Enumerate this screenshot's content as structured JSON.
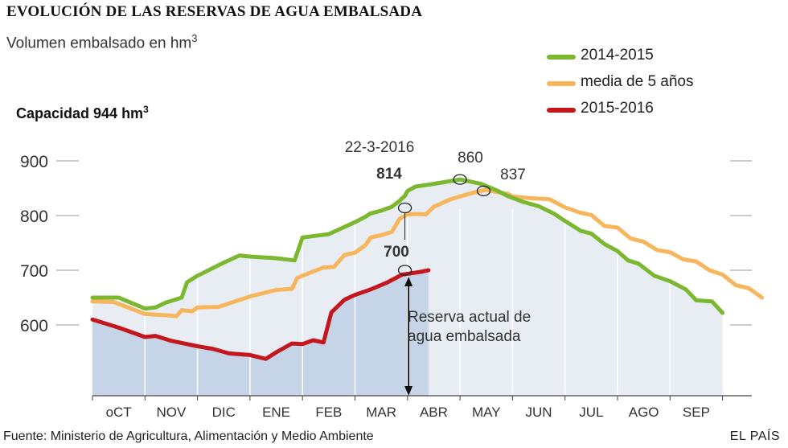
{
  "header": {
    "title": "EVOLUCIÓN DE LAS RESERVAS DE AGUA EMBALSADA",
    "subtitle": "Volumen embalsado en hm",
    "subtitle_sup": "3",
    "capacity": "Capacidad 944 hm",
    "capacity_sup": "3"
  },
  "footer": {
    "source": "Fuente: Ministerio de Agricultura, Alimentación y Medio Ambiente",
    "brand": "EL PAÍS"
  },
  "colors": {
    "green": "#7cb82f",
    "orange": "#f7b55c",
    "red": "#c4161c",
    "area_light": "#e8edf3",
    "area_dark": "#c5d5e7",
    "grid": "#999999"
  },
  "chart_data": {
    "type": "line",
    "title": "EVOLUCIÓN DE LAS RESERVAS DE AGUA EMBALSADA",
    "ylabel": "Volumen embalsado en hm3",
    "xlabel": "",
    "ylim": [
      480,
      945
    ],
    "yticks": [
      600,
      700,
      800,
      900
    ],
    "categories": [
      "oCT",
      "NOV",
      "DIC",
      "ENE",
      "FEB",
      "MAR",
      "ABR",
      "MAY",
      "JUN",
      "JUL",
      "AGO",
      "SEP"
    ],
    "x_unit": "month index from start of October (0 = 1 Oct, 12 = 30 Sep)",
    "series": [
      {
        "name": "2014-2015",
        "color_key": "green",
        "points": [
          [
            0,
            650
          ],
          [
            0.5,
            650
          ],
          [
            1,
            630
          ],
          [
            1.2,
            632
          ],
          [
            1.4,
            641
          ],
          [
            1.7,
            650
          ],
          [
            1.8,
            678
          ],
          [
            2,
            690
          ],
          [
            2.5,
            714
          ],
          [
            2.8,
            727
          ],
          [
            3,
            725
          ],
          [
            3.5,
            722
          ],
          [
            3.85,
            718
          ],
          [
            4,
            760
          ],
          [
            4.25,
            763
          ],
          [
            4.5,
            766
          ],
          [
            4.75,
            777
          ],
          [
            5,
            788
          ],
          [
            5.2,
            798
          ],
          [
            5.3,
            804
          ],
          [
            5.5,
            809
          ],
          [
            5.7,
            816
          ],
          [
            5.85,
            827
          ],
          [
            5.95,
            836
          ],
          [
            6,
            845
          ],
          [
            6.15,
            853
          ],
          [
            6.5,
            858
          ],
          [
            7,
            866
          ],
          [
            7.4,
            858
          ],
          [
            7.7,
            846
          ],
          [
            7.9,
            836
          ],
          [
            8.2,
            825
          ],
          [
            8.5,
            817
          ],
          [
            8.8,
            803
          ],
          [
            9,
            790
          ],
          [
            9.3,
            772
          ],
          [
            9.5,
            767
          ],
          [
            9.75,
            748
          ],
          [
            10,
            735
          ],
          [
            10.2,
            718
          ],
          [
            10.4,
            712
          ],
          [
            10.7,
            690
          ],
          [
            11,
            680
          ],
          [
            11.3,
            665
          ],
          [
            11.5,
            645
          ],
          [
            11.8,
            643
          ],
          [
            12,
            622
          ]
        ]
      },
      {
        "name": "media de 5 años",
        "color_key": "orange",
        "points": [
          [
            0,
            643
          ],
          [
            0.4,
            642
          ],
          [
            1,
            620
          ],
          [
            1.5,
            617
          ],
          [
            1.6,
            616
          ],
          [
            1.7,
            627
          ],
          [
            1.9,
            625
          ],
          [
            2,
            632
          ],
          [
            2.4,
            633
          ],
          [
            3,
            652
          ],
          [
            3.5,
            664
          ],
          [
            3.8,
            666
          ],
          [
            3.9,
            686
          ],
          [
            4,
            690
          ],
          [
            4.4,
            705
          ],
          [
            4.6,
            706
          ],
          [
            4.8,
            728
          ],
          [
            5,
            732
          ],
          [
            5.2,
            746
          ],
          [
            5.3,
            760
          ],
          [
            5.5,
            764
          ],
          [
            5.7,
            770
          ],
          [
            5.85,
            794
          ],
          [
            6,
            802
          ],
          [
            6.2,
            803
          ],
          [
            6.35,
            802
          ],
          [
            6.5,
            816
          ],
          [
            6.8,
            829
          ],
          [
            7,
            835
          ],
          [
            7.3,
            843
          ],
          [
            7.5,
            847
          ],
          [
            7.7,
            843
          ],
          [
            7.9,
            840
          ],
          [
            8,
            835
          ],
          [
            8.3,
            832
          ],
          [
            8.7,
            830
          ],
          [
            9,
            815
          ],
          [
            9.3,
            805
          ],
          [
            9.5,
            801
          ],
          [
            9.75,
            781
          ],
          [
            10,
            778
          ],
          [
            10.25,
            758
          ],
          [
            10.5,
            752
          ],
          [
            10.75,
            737
          ],
          [
            11,
            733
          ],
          [
            11.25,
            720
          ],
          [
            11.5,
            716
          ],
          [
            11.75,
            700
          ],
          [
            12,
            692
          ],
          [
            12.25,
            673
          ],
          [
            12.5,
            667
          ],
          [
            12.75,
            650
          ]
        ]
      },
      {
        "name": "2015-2016",
        "color_key": "red",
        "points": [
          [
            0,
            610
          ],
          [
            0.5,
            595
          ],
          [
            1,
            578
          ],
          [
            1.2,
            580
          ],
          [
            1.5,
            571
          ],
          [
            2,
            561
          ],
          [
            2.3,
            556
          ],
          [
            2.6,
            548
          ],
          [
            3,
            545
          ],
          [
            3.3,
            538
          ],
          [
            3.5,
            550
          ],
          [
            3.8,
            566
          ],
          [
            4,
            565
          ],
          [
            4.2,
            572
          ],
          [
            4.4,
            568
          ],
          [
            4.55,
            623
          ],
          [
            4.8,
            646
          ],
          [
            5,
            655
          ],
          [
            5.3,
            665
          ],
          [
            5.6,
            677
          ],
          [
            5.9,
            692
          ],
          [
            6.25,
            697
          ],
          [
            6.4,
            700
          ]
        ]
      }
    ],
    "annotations": {
      "date": "22-3-2016",
      "current_label": "814",
      "current_value_green": 814,
      "reserve_label": "700",
      "reserve_value": 700,
      "peak_green_label": "860",
      "peak_green_value": 860,
      "peak_avg_label": "837",
      "peak_avg_value": 837,
      "arrow_text_line1": "Reserva actual de",
      "arrow_text_line2": "agua embalsada"
    },
    "legend": [
      {
        "label": "2014-2015",
        "color_key": "green"
      },
      {
        "label": "media de 5 años",
        "color_key": "orange"
      },
      {
        "label": "2015-2016",
        "color_key": "red"
      }
    ],
    "legend_position": "top-right"
  }
}
